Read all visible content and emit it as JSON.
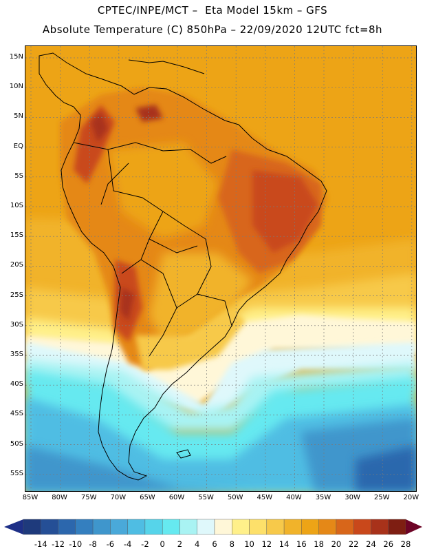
{
  "header": {
    "line1": "CPTEC/INPE/MCT –  Eta Model 15km – GFS",
    "line2": "Absolute Temperature (C) 850hPa – 22/09/2020 12UTC fct=8h"
  },
  "axes": {
    "lat_labels": [
      "15N",
      "10N",
      "5N",
      "EQ",
      "5S",
      "10S",
      "15S",
      "20S",
      "25S",
      "30S",
      "35S",
      "40S",
      "45S",
      "50S",
      "55S"
    ],
    "lon_labels": [
      "85W",
      "80W",
      "75W",
      "70W",
      "65W",
      "60W",
      "55W",
      "50W",
      "45W",
      "40W",
      "35W",
      "30W",
      "25W",
      "20W"
    ]
  },
  "colorbar": {
    "labels": [
      "-14",
      "-12",
      "-10",
      "-8",
      "-6",
      "-4",
      "-2",
      "0",
      "2",
      "4",
      "6",
      "8",
      "10",
      "12",
      "14",
      "16",
      "18",
      "20",
      "22",
      "24",
      "26",
      "28"
    ],
    "colors": [
      "#1e3a7c",
      "#254f96",
      "#2c67ad",
      "#347fbf",
      "#3f96cc",
      "#4aa9d9",
      "#4fbde3",
      "#56d4ea",
      "#66e9f0",
      "#a9f3f3",
      "#dff8fb",
      "#fff7d8",
      "#fff08a",
      "#fde06a",
      "#f7c94a",
      "#f1b32a",
      "#eda416",
      "#e58817",
      "#d8661a",
      "#c9481b",
      "#a8321a",
      "#7e1e12"
    ],
    "under_color": "#1d2f87",
    "over_color": "#6d0426"
  },
  "legend": {
    "colors": {
      "ocean_tropical": "#eda416",
      "warm": "#e58817",
      "hot": "#d8661a",
      "hotter": "#c9481b",
      "hottest": "#a8321a",
      "mild": "#f1b32a",
      "cool_yellow": "#f7c94a",
      "pale_yellow": "#fff08a",
      "cream": "#fff7d8",
      "pale_cyan": "#dff8fb",
      "light_cyan": "#a9f3f3",
      "cyan": "#66e9f0",
      "sky": "#4fbde3",
      "blue": "#3f96cc",
      "deep_blue": "#2c67ad",
      "coast": "#000000",
      "grid": "#7a7a7a"
    }
  }
}
